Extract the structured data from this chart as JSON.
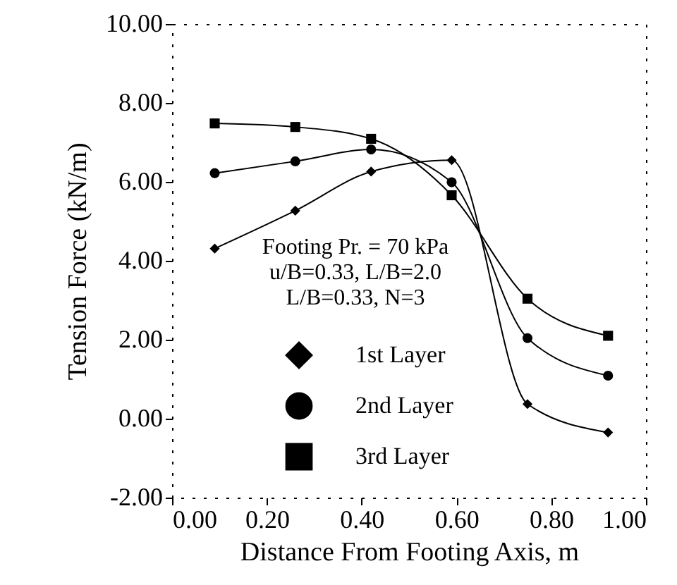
{
  "chart_data": {
    "type": "line",
    "xlabel": "Distance From Footing Axis, m",
    "ylabel": "Tension Force (kN/m)",
    "x": [
      0.09,
      0.26,
      0.42,
      0.59,
      0.75,
      0.92
    ],
    "series": [
      {
        "name": "1st Layer",
        "color": "#000000",
        "marker": "diamond",
        "values": [
          4.31,
          5.27,
          6.26,
          6.55,
          0.37,
          -0.35
        ]
      },
      {
        "name": "2nd Layer",
        "color": "#000000",
        "marker": "circle",
        "values": [
          6.22,
          6.52,
          6.82,
          5.99,
          2.04,
          1.09
        ]
      },
      {
        "name": "3rd Layer",
        "color": "#000000",
        "marker": "square",
        "values": [
          7.48,
          7.39,
          7.09,
          5.66,
          3.04,
          2.1
        ]
      }
    ],
    "xlim": [
      0,
      1
    ],
    "ylim": [
      -2,
      10
    ],
    "xticks": [
      {
        "value": 0,
        "label": "0.00"
      },
      {
        "value": 0.2,
        "label": "0.20"
      },
      {
        "value": 0.4,
        "label": "0.40"
      },
      {
        "value": 0.6,
        "label": "0.60"
      },
      {
        "value": 0.8,
        "label": "0.80"
      },
      {
        "value": 1,
        "label": "1.00"
      }
    ],
    "yticks": [
      {
        "value": -2,
        "label": "-2.00"
      },
      {
        "value": 0,
        "label": "0.00"
      },
      {
        "value": 2,
        "label": "2.00"
      },
      {
        "value": 4,
        "label": "4.00"
      },
      {
        "value": 6,
        "label": "6.00"
      },
      {
        "value": 8,
        "label": "8.00"
      },
      {
        "value": 10,
        "label": "10.00"
      }
    ],
    "annotations": [
      "Footing Pr. = 70 kPa",
      "u/B=0.33, L/B=2.0",
      "L/B=0.33, N=3"
    ],
    "legend": "bottom",
    "line_style": "solid",
    "grid": false
  }
}
